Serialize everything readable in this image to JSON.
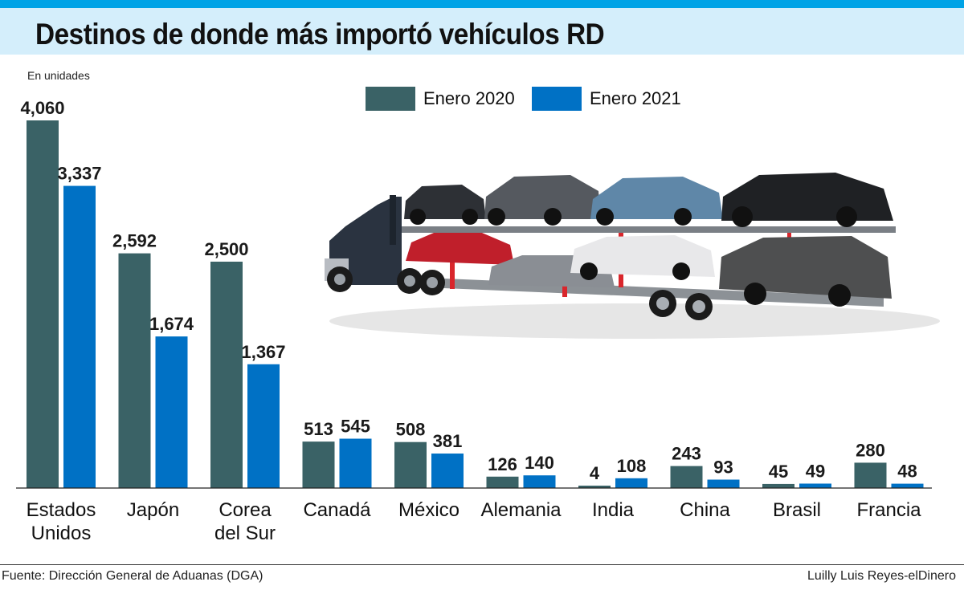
{
  "header": {
    "title": "Destinos de donde más importó vehículos RD",
    "subtitle": "En unidades"
  },
  "footer": {
    "source": "Fuente: Dirección General de Aduanas (DGA)",
    "credit": "Luilly Luis Reyes-elDinero"
  },
  "colors": {
    "series_2020": "#3a6266",
    "series_2021": "#0071c5",
    "accent": "#00a3e6"
  },
  "chart_data": {
    "type": "bar",
    "title": "Destinos de donde más importó vehículos RD",
    "ylabel": "En unidades",
    "xlabel": "",
    "ylim": [
      0,
      4060
    ],
    "grid": false,
    "legend": "top-center",
    "categories": [
      [
        "Estados",
        "Unidos"
      ],
      [
        "Japón"
      ],
      [
        "Corea",
        "del Sur"
      ],
      [
        "Canadá"
      ],
      [
        "México"
      ],
      [
        "Alemania"
      ],
      [
        "India"
      ],
      [
        "China"
      ],
      [
        "Brasil"
      ],
      [
        "Francia"
      ]
    ],
    "series": [
      {
        "name": "Enero 2020",
        "values": [
          4060,
          2592,
          2500,
          513,
          508,
          126,
          4,
          243,
          45,
          280
        ],
        "labels": [
          "4,060",
          "2,592",
          "2,500",
          "513",
          "508",
          "126",
          "4",
          "243",
          "45",
          "280"
        ]
      },
      {
        "name": "Enero 2021",
        "values": [
          3337,
          1674,
          1367,
          545,
          381,
          140,
          108,
          93,
          49,
          48
        ],
        "labels": [
          "3,337",
          "1,674",
          "1,367",
          "545",
          "381",
          "140",
          "108",
          "93",
          "49",
          "48"
        ]
      }
    ]
  }
}
